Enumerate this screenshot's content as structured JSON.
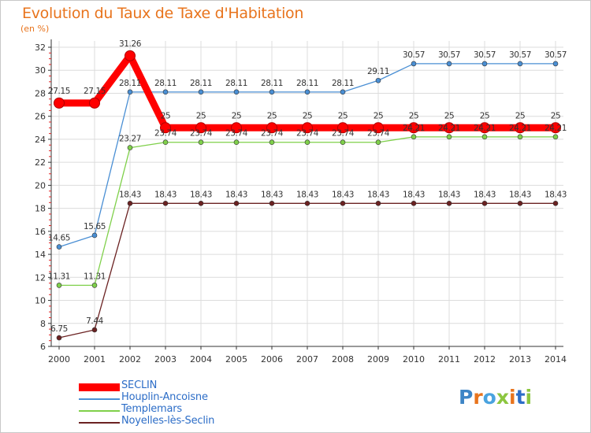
{
  "title": "Evolution du Taux de Taxe d'Habitation",
  "subtitle": "(en %)",
  "logo": {
    "text": "Proxiti",
    "letter_colors": [
      "#3d85c6",
      "#e8741d",
      "#4aa3df",
      "#8cc63f",
      "#e8741d",
      "#2c6dc7",
      "#8cc63f"
    ]
  },
  "chart_data": {
    "type": "line",
    "x": [
      "2000",
      "2001",
      "2002",
      "2003",
      "2004",
      "2005",
      "2006",
      "2007",
      "2008",
      "2009",
      "2010",
      "2011",
      "2012",
      "2013",
      "2014"
    ],
    "ylim": [
      6,
      32
    ],
    "yticks": [
      "6",
      "8",
      "10",
      "12",
      "14",
      "16",
      "18",
      "20",
      "22",
      "24",
      "26",
      "28",
      "30",
      "32"
    ],
    "grid": true,
    "series": [
      {
        "name": "SECLIN",
        "color": "#ff0000",
        "values": [
          27.15,
          27.15,
          31.26,
          25,
          25,
          25,
          25,
          25,
          25,
          25,
          25,
          25,
          25,
          25,
          25
        ],
        "labels": [
          "27.15",
          "27.15",
          "31.26",
          "25",
          "25",
          "25",
          "25",
          "25",
          "25",
          "25",
          "25",
          "25",
          "25",
          "25",
          "25"
        ]
      },
      {
        "name": "Houplin-Ancoisne",
        "color": "#4a8fd4",
        "values": [
          14.65,
          15.65,
          28.11,
          28.11,
          28.11,
          28.11,
          28.11,
          28.11,
          28.11,
          29.11,
          30.57,
          30.57,
          30.57,
          30.57,
          30.57
        ],
        "labels": [
          "14.65",
          "15.65",
          "28.11",
          "28.11",
          "28.11",
          "28.11",
          "28.11",
          "28.11",
          "28.11",
          "29.11",
          "30.57",
          "30.57",
          "30.57",
          "30.57",
          "30.57"
        ]
      },
      {
        "name": "Templemars",
        "color": "#7fd04a",
        "values": [
          11.31,
          11.31,
          23.27,
          23.74,
          23.74,
          23.74,
          23.74,
          23.74,
          23.74,
          23.74,
          24.21,
          24.21,
          24.21,
          24.21,
          24.21
        ],
        "labels": [
          "11.31",
          "11.31",
          "23.27",
          "23.74",
          "23.74",
          "23.74",
          "23.74",
          "23.74",
          "23.74",
          "23.74",
          "24.21",
          "24.21",
          "24.21",
          "24.21",
          "24.21"
        ]
      },
      {
        "name": "Noyelles-lès-Seclin",
        "color": "#6b2222",
        "values": [
          6.75,
          7.44,
          18.43,
          18.43,
          18.43,
          18.43,
          18.43,
          18.43,
          18.43,
          18.43,
          18.43,
          18.43,
          18.43,
          18.43,
          18.43
        ],
        "labels": [
          "6.75",
          "7.44",
          "18.43",
          "18.43",
          "18.43",
          "18.43",
          "18.43",
          "18.43",
          "18.43",
          "18.43",
          "18.43",
          "18.43",
          "18.43",
          "18.43",
          "18.43"
        ]
      }
    ]
  }
}
